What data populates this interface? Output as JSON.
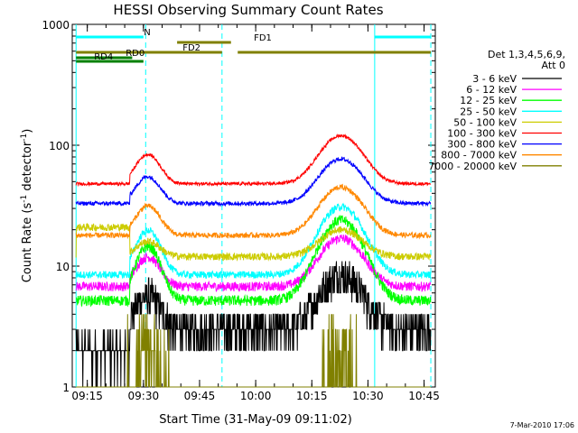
{
  "chart_data": {
    "type": "line",
    "title": "HESSI Observing Summary Count Rates",
    "xlabel": "Start Time (31-May-09 09:11:02)",
    "ylabel_main": "Count Rate (s",
    "ylabel_sup1": "-1",
    "ylabel_mid": " detector",
    "ylabel_sup2": "-1",
    "ylabel_end": ")",
    "yscale": "log",
    "ylim": [
      1,
      1000
    ],
    "xlim_minutes": [
      9.183,
      10.8
    ],
    "x_ticks": [
      {
        "h": 9.25,
        "label": "09:15"
      },
      {
        "h": 9.5,
        "label": "09:30"
      },
      {
        "h": 9.75,
        "label": "09:45"
      },
      {
        "h": 10.0,
        "label": "10:00"
      },
      {
        "h": 10.25,
        "label": "10:15"
      },
      {
        "h": 10.5,
        "label": "10:30"
      },
      {
        "h": 10.75,
        "label": "10:45"
      }
    ],
    "y_ticks": [
      {
        "v": 1,
        "label": "1"
      },
      {
        "v": 10,
        "label": "10"
      },
      {
        "v": 100,
        "label": "100"
      },
      {
        "v": 1000,
        "label": "1000"
      }
    ],
    "legend_header": [
      "Det 1,3,4,5,6,9,",
      "Att 0"
    ],
    "legend_position": "right",
    "series": [
      {
        "name": "3 - 6 keV",
        "color": "#000000",
        "night_level": 2.0,
        "day_level": 3.0,
        "peak_level": 8.5,
        "noise": 0.35
      },
      {
        "name": "6 - 12 keV",
        "color": "#ff00ff",
        "night_level": 6.8,
        "day_level": 6.8,
        "peak_level": 17,
        "noise": 0.09
      },
      {
        "name": "12 - 25 keV",
        "color": "#00ff00",
        "night_level": 5.2,
        "day_level": 5.2,
        "peak_level": 24,
        "noise": 0.1
      },
      {
        "name": "25 - 50 keV",
        "color": "#00ffff",
        "night_level": 8.5,
        "day_level": 8.5,
        "peak_level": 31,
        "noise": 0.07
      },
      {
        "name": "50 - 100 keV",
        "color": "#cccc00",
        "night_level": 21,
        "day_level": 12,
        "peak_level": 20,
        "noise": 0.07
      },
      {
        "name": "100 - 300 keV",
        "color": "#ff0000",
        "night_level": 48,
        "day_level": 48,
        "peak_level": 120,
        "noise": 0.03
      },
      {
        "name": "300 - 800 keV",
        "color": "#0000ff",
        "night_level": 33,
        "day_level": 33,
        "peak_level": 77,
        "noise": 0.04
      },
      {
        "name": "800 - 7000 keV",
        "color": "#ff8800",
        "night_level": 18,
        "day_level": 18,
        "peak_level": 45,
        "noise": 0.05
      },
      {
        "name": "7000 - 20000 keV",
        "color": "#808000",
        "night_level": 1.0,
        "day_level": 1.0,
        "peak_level": 1.0,
        "noise": 0.0
      }
    ],
    "flags": [
      {
        "label": "N",
        "color": "#00ffff",
        "segments": [
          [
            9.2,
            9.5
          ],
          [
            10.53,
            10.78
          ]
        ]
      },
      {
        "label": "FD1",
        "color": "#808000",
        "segments": [
          [
            9.65,
            9.89
          ]
        ]
      },
      {
        "label": "FD2",
        "color": "#808000",
        "segments": [
          [
            9.2,
            9.85
          ],
          [
            9.92,
            10.78
          ]
        ]
      },
      {
        "label": "RD0",
        "color": "#008000",
        "segments": [
          [
            9.2,
            9.45
          ]
        ]
      },
      {
        "label": "RD4",
        "color": "#008000",
        "segments": [
          [
            9.2,
            9.5
          ]
        ]
      }
    ],
    "vlines_solid": [
      9.2,
      10.53
    ],
    "vlines_dashed": [
      9.51,
      9.85,
      10.78
    ],
    "footer_date": "7-Mar-2010 17:06"
  }
}
